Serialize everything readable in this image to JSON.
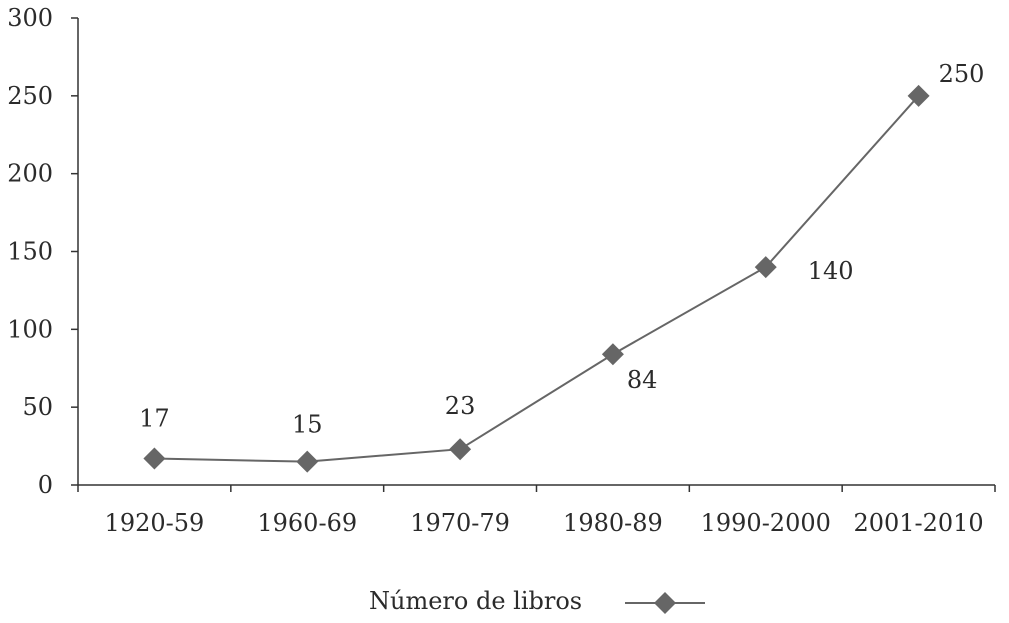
{
  "chart_data": {
    "type": "line",
    "title": "",
    "xlabel": "",
    "ylabel": "",
    "categories": [
      "1920-59",
      "1960-69",
      "1970-79",
      "1980-89",
      "1990-2000",
      "2001-2010"
    ],
    "series": [
      {
        "name": "Número de libros",
        "values": [
          17,
          15,
          23,
          84,
          140,
          250
        ],
        "color": "#666666",
        "marker": "diamond"
      }
    ],
    "ylim": [
      0,
      300
    ],
    "yticks": [
      0,
      50,
      100,
      150,
      200,
      250,
      300
    ],
    "grid": false,
    "legend": "bottom",
    "data_labels": true
  }
}
